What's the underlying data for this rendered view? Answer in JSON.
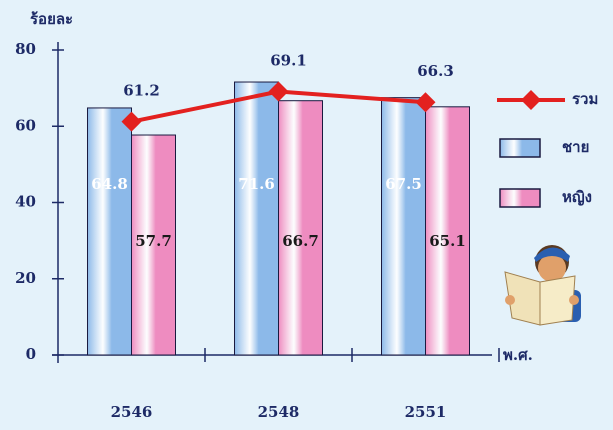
{
  "chart_data": {
    "type": "bar",
    "y_label": "ร้อยละ",
    "x_label": "พ.ศ.",
    "categories": [
      "2546",
      "2548",
      "2551"
    ],
    "series": [
      {
        "name": "ชาย",
        "color": "#8cb9e9",
        "values": [
          64.8,
          71.6,
          67.5
        ]
      },
      {
        "name": "หญิง",
        "color": "#ee8cc0",
        "values": [
          57.7,
          66.7,
          65.1
        ]
      },
      {
        "name": "รวม",
        "type": "line",
        "color": "#e3211f",
        "values": [
          61.2,
          69.1,
          66.3
        ]
      }
    ],
    "ylim": [
      0,
      80
    ],
    "yticks": [
      0,
      20,
      40,
      60,
      80
    ],
    "legend": "right"
  }
}
